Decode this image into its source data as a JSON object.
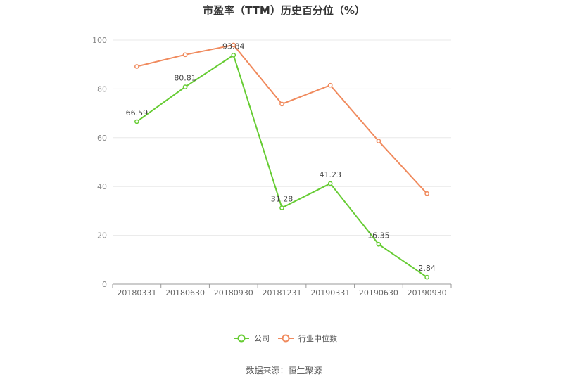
{
  "colors": {
    "company": "#66cc33",
    "industry": "#f08a5d",
    "grid": "#e8e8e8",
    "axis": "#999999",
    "text": "#333333"
  },
  "chart_data": {
    "type": "line",
    "title": "市盈率（TTM）历史百分位（%）",
    "categories": [
      "20180331",
      "20180630",
      "20180930",
      "20181231",
      "20190331",
      "20190630",
      "20190930"
    ],
    "series": [
      {
        "name": "公司",
        "values": [
          66.59,
          80.81,
          93.84,
          31.28,
          41.23,
          16.35,
          2.84
        ],
        "data_labels": [
          "66.59",
          "80.81",
          "93.84",
          "31.28",
          "41.23",
          "16.35",
          "2.84"
        ],
        "color": "#66cc33"
      },
      {
        "name": "行业中位数",
        "values": [
          89.2,
          94.0,
          98.0,
          73.8,
          81.5,
          58.6,
          37.1
        ],
        "color": "#f08a5d"
      }
    ],
    "ylim": [
      0,
      100
    ],
    "yticks": [
      0,
      20,
      40,
      60,
      80,
      100
    ],
    "grid": true,
    "legend_position": "bottom"
  },
  "footer": {
    "source": "数据来源：恒生聚源"
  }
}
